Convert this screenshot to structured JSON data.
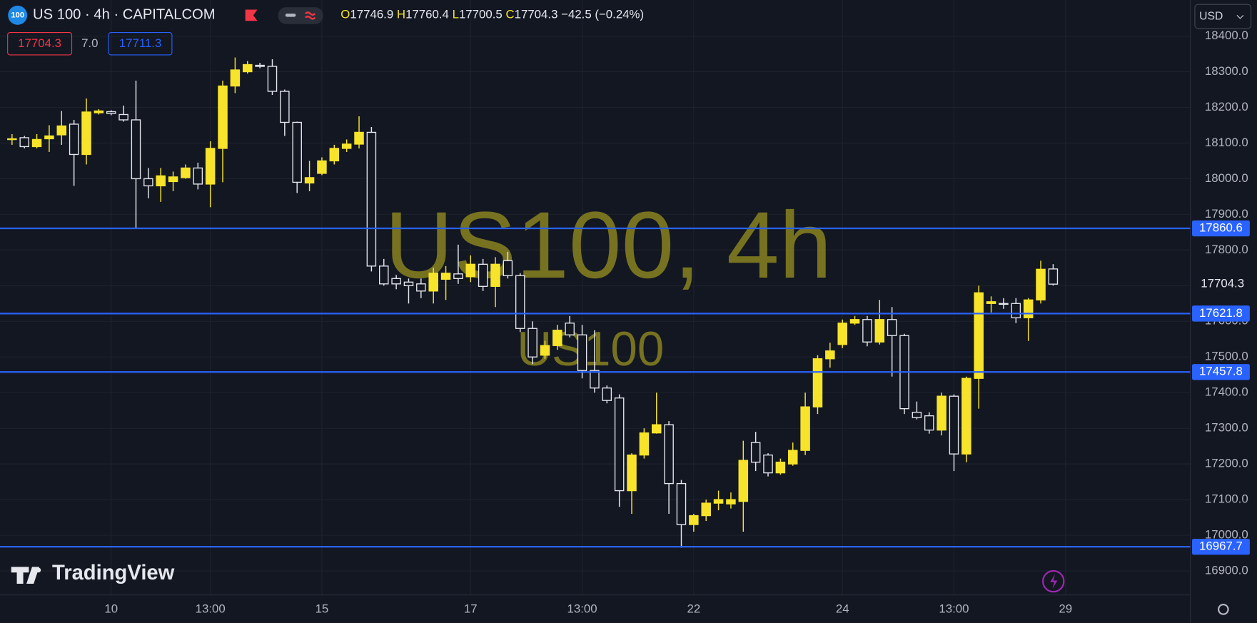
{
  "header": {
    "badge": "100",
    "symbol": "US 100 · 4h · CAPITALCOM",
    "ohlc": [
      {
        "label": "O",
        "value": "17746.9"
      },
      {
        "label": "H",
        "value": "17760.4"
      },
      {
        "label": "L",
        "value": "17700.5"
      },
      {
        "label": "C",
        "value": "17704.3"
      }
    ],
    "change": "−42.5 (−0.24%)"
  },
  "trade": {
    "sell": "17704.3",
    "spread": "7.0",
    "buy": "17711.3"
  },
  "currency": "USD",
  "watermark": {
    "title": "US100, 4h",
    "symbol": "US100"
  },
  "logo": "TradingView",
  "chart_data": {
    "type": "candlestick",
    "up_color": "#f7e42a",
    "down_color": "#e6e8ee",
    "level_color": "#2962ff",
    "grid": true,
    "xlim": [
      -0.97,
      95.08
    ],
    "xticks": [
      {
        "value": 8,
        "label": "10"
      },
      {
        "value": 16,
        "label": "13:00"
      },
      {
        "value": 25,
        "label": "15"
      },
      {
        "value": 37,
        "label": "17"
      },
      {
        "value": 46,
        "label": "13:00"
      },
      {
        "value": 55,
        "label": "22"
      },
      {
        "value": 67,
        "label": "24"
      },
      {
        "value": 76,
        "label": "13:00"
      },
      {
        "value": 85,
        "label": "29"
      }
    ],
    "ylim": [
      16832.6,
      18501.2
    ],
    "yticks": [
      {
        "value": 16900,
        "label": "16900.0"
      },
      {
        "value": 17000,
        "label": "17000.0"
      },
      {
        "value": 17100,
        "label": "17100.0"
      },
      {
        "value": 17200,
        "label": "17200.0"
      },
      {
        "value": 17300,
        "label": "17300.0"
      },
      {
        "value": 17400,
        "label": "17400.0"
      },
      {
        "value": 17500,
        "label": "17500.0"
      },
      {
        "value": 17600,
        "label": "17600.0"
      },
      {
        "value": 17700,
        "label": "17700.0"
      },
      {
        "value": 17800,
        "label": "17800.0"
      },
      {
        "value": 17900,
        "label": "17900.0"
      },
      {
        "value": 18000,
        "label": "18000.0"
      },
      {
        "value": 18100,
        "label": "18100.0"
      },
      {
        "value": 18200,
        "label": "18200.0"
      },
      {
        "value": 18300,
        "label": "18300.0"
      },
      {
        "value": 18400,
        "label": "18400.0"
      }
    ],
    "levels": [
      17860.6,
      17621.8,
      17457.8,
      16967.7
    ],
    "open": [
      18110,
      18115,
      18090,
      18112,
      18123,
      18153,
      18068,
      18185,
      18188,
      18180,
      18165,
      18000,
      17980,
      17992,
      18003,
      18030,
      17985,
      18085,
      18260,
      18300,
      18318,
      18315,
      18245,
      18158,
      17988,
      18015,
      18050,
      18085,
      18097,
      18130,
      17755,
      17720,
      17710,
      17705,
      17685,
      17718,
      17733,
      17725,
      17760,
      17698,
      17770,
      17728,
      17580,
      17505,
      17532,
      17595,
      17562,
      17462,
      17413,
      17385,
      17125,
      17225,
      17287,
      17310,
      17145,
      17030,
      17055,
      17090,
      17088,
      17095,
      17260,
      17225,
      17175,
      17200,
      17238,
      17360,
      17495,
      17535,
      17595,
      17605,
      17542,
      17605,
      17560,
      17345,
      17335,
      17295,
      17390,
      17228,
      17440,
      17650,
      17650,
      17650,
      17610,
      17660,
      17746.9
    ],
    "high": [
      18125,
      18120,
      18125,
      18150,
      18190,
      18165,
      18225,
      18195,
      18192,
      18205,
      18275,
      18030,
      18030,
      18020,
      18040,
      18045,
      18105,
      18275,
      18340,
      18330,
      18325,
      18335,
      18250,
      18160,
      18050,
      18060,
      18095,
      18110,
      18175,
      18145,
      17775,
      17730,
      17720,
      17720,
      17750,
      17755,
      17815,
      17785,
      17775,
      17780,
      17795,
      17735,
      17600,
      17545,
      17590,
      17615,
      17590,
      17575,
      17420,
      17395,
      17230,
      17300,
      17400,
      17320,
      17155,
      17060,
      17100,
      17125,
      17120,
      17265,
      17290,
      17230,
      17215,
      17260,
      17400,
      17505,
      17540,
      17605,
      17615,
      17615,
      17660,
      17640,
      17565,
      17375,
      17345,
      17400,
      17395,
      17445,
      17700,
      17670,
      17665,
      17665,
      17665,
      17770,
      17760.4
    ],
    "low": [
      18095,
      18085,
      18085,
      18075,
      18095,
      17980,
      18040,
      18180,
      18178,
      18160,
      17860,
      17945,
      17935,
      17965,
      18000,
      17970,
      17920,
      17990,
      18240,
      18295,
      18310,
      18235,
      18120,
      17960,
      17965,
      18010,
      18040,
      18075,
      18085,
      17740,
      17700,
      17690,
      17650,
      17665,
      17650,
      17660,
      17705,
      17710,
      17685,
      17640,
      17720,
      17570,
      17480,
      17495,
      17520,
      17555,
      17440,
      17400,
      17370,
      17080,
      17060,
      17215,
      17285,
      17060,
      16965,
      17010,
      17040,
      17070,
      17075,
      17010,
      17180,
      17165,
      17170,
      17195,
      17225,
      17340,
      17470,
      17525,
      17590,
      17530,
      17535,
      17445,
      17340,
      17325,
      17285,
      17280,
      17180,
      17205,
      17355,
      17625,
      17635,
      17595,
      17545,
      17650,
      17700.5
    ],
    "close": [
      18112,
      18090,
      18110,
      18120,
      18148,
      18068,
      18187,
      18190,
      18183,
      18165,
      18000,
      17980,
      18008,
      18005,
      18030,
      17985,
      18085,
      18260,
      18305,
      18320,
      18315,
      18245,
      18158,
      17990,
      18003,
      18050,
      18085,
      18097,
      18130,
      17755,
      17705,
      17705,
      17700,
      17685,
      17735,
      17735,
      17720,
      17760,
      17698,
      17760,
      17728,
      17580,
      17500,
      17532,
      17575,
      17562,
      17462,
      17413,
      17378,
      17125,
      17225,
      17287,
      17310,
      17145,
      17030,
      17055,
      17090,
      17100,
      17100,
      17210,
      17205,
      17175,
      17205,
      17238,
      17360,
      17495,
      17517,
      17595,
      17605,
      17542,
      17605,
      17560,
      17355,
      17330,
      17295,
      17390,
      17228,
      17440,
      17680,
      17655,
      17648,
      17610,
      17660,
      17746,
      17704.3
    ]
  }
}
